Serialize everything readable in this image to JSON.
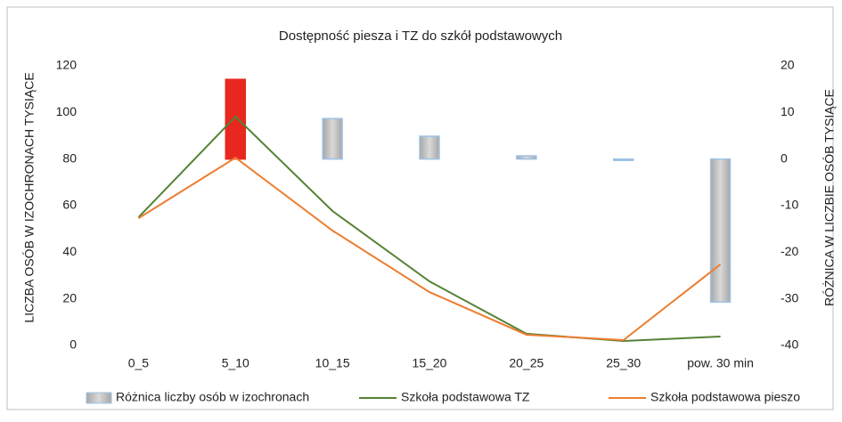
{
  "chart_data": {
    "type": "bar_line_combo",
    "title": "Dostępność  piesza  i TZ do szkół podstawowych",
    "ylabel": "LICZBA OSÓB W IZOCHRONACH TYSIĄCE",
    "y2label": "RÓŻNICA W LICZBIE OSÓB TYSIĄCE",
    "categories": [
      "0_5",
      "5_10",
      "10_15",
      "15_20",
      "20_25",
      "25_30",
      "pow. 30 min"
    ],
    "ylim": [
      0,
      120
    ],
    "yticks": [
      0,
      20,
      40,
      60,
      80,
      100,
      120
    ],
    "y2lim": [
      -40,
      20
    ],
    "y2ticks": [
      -40,
      -30,
      -20,
      -10,
      0,
      10,
      20
    ],
    "grid": false,
    "legend": "bottom",
    "series": [
      {
        "name": "Różnica liczby osób w izochronach",
        "type": "bar",
        "axis": "y2",
        "color": "#c4c4c4",
        "border": "#9dc3e6",
        "colors": [
          "#c4c4c4",
          "#e8281e",
          "#c4c4c4",
          "#c4c4c4",
          "#c4c4c4",
          "#c4c4c4",
          "#c4c4c4"
        ],
        "values": [
          0,
          17.1,
          8.7,
          4.9,
          0.7,
          -0.3,
          -30.7
        ]
      },
      {
        "name": "Szkoła podstawowa TZ",
        "type": "line",
        "axis": "y",
        "color": "#548235",
        "values": [
          55,
          98.2,
          57.7,
          27.5,
          5,
          1.9,
          3.8
        ]
      },
      {
        "name": "Szkoła podstawowa pieszo",
        "type": "line",
        "axis": "y",
        "color": "#ed7d31",
        "values": [
          54.6,
          80.6,
          49.3,
          22.9,
          4.6,
          2.3,
          34.8
        ]
      }
    ]
  }
}
